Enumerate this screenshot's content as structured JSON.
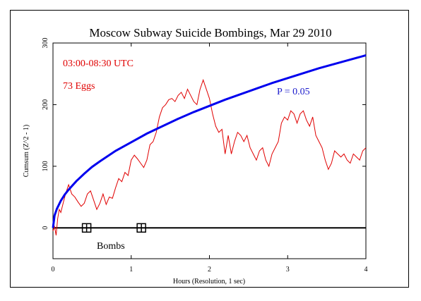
{
  "chart_data": {
    "type": "line",
    "title": "Moscow Subway Suicide Bombings, Mar 29 2010",
    "xlabel": "Hours (Resolution, 1 sec)",
    "ylabel": "Cumsum (Z^2 - 1)",
    "xlim": [
      0,
      4
    ],
    "ylim": [
      -50,
      300
    ],
    "x_ticks": [
      0,
      1,
      2,
      3,
      4
    ],
    "y_ticks": [
      0,
      100,
      200,
      300
    ],
    "grid": false,
    "series": [
      {
        "name": "",
        "color": "#e00000",
        "x": [
          0,
          0.02,
          0.04,
          0.06,
          0.08,
          0.1,
          0.13,
          0.16,
          0.2,
          0.24,
          0.28,
          0.32,
          0.36,
          0.4,
          0.44,
          0.48,
          0.52,
          0.56,
          0.6,
          0.64,
          0.68,
          0.72,
          0.76,
          0.8,
          0.84,
          0.88,
          0.92,
          0.96,
          1.0,
          1.04,
          1.08,
          1.12,
          1.16,
          1.2,
          1.24,
          1.28,
          1.32,
          1.36,
          1.4,
          1.44,
          1.48,
          1.52,
          1.56,
          1.6,
          1.64,
          1.68,
          1.72,
          1.76,
          1.8,
          1.84,
          1.88,
          1.92,
          1.96,
          2.0,
          2.04,
          2.08,
          2.12,
          2.16,
          2.2,
          2.24,
          2.28,
          2.32,
          2.36,
          2.4,
          2.44,
          2.48,
          2.52,
          2.56,
          2.6,
          2.64,
          2.68,
          2.72,
          2.76,
          2.8,
          2.84,
          2.88,
          2.92,
          2.96,
          3.0,
          3.04,
          3.08,
          3.12,
          3.16,
          3.2,
          3.24,
          3.28,
          3.32,
          3.36,
          3.4,
          3.44,
          3.48,
          3.52,
          3.56,
          3.6,
          3.64,
          3.68,
          3.72,
          3.76,
          3.8,
          3.84,
          3.88,
          3.92,
          3.96,
          4.0
        ],
        "y": [
          -5,
          2,
          -12,
          15,
          30,
          25,
          40,
          55,
          70,
          55,
          50,
          42,
          35,
          40,
          55,
          60,
          45,
          30,
          40,
          55,
          38,
          50,
          48,
          65,
          80,
          75,
          90,
          85,
          110,
          118,
          112,
          105,
          98,
          110,
          135,
          140,
          155,
          180,
          195,
          200,
          208,
          210,
          205,
          215,
          220,
          210,
          225,
          215,
          205,
          200,
          225,
          240,
          225,
          210,
          185,
          165,
          155,
          160,
          120,
          150,
          120,
          140,
          155,
          150,
          140,
          150,
          130,
          120,
          110,
          125,
          130,
          110,
          100,
          120,
          130,
          140,
          170,
          180,
          175,
          190,
          185,
          170,
          185,
          190,
          175,
          165,
          180,
          150,
          140,
          130,
          110,
          95,
          105,
          125,
          120,
          115,
          120,
          110,
          105,
          120,
          115,
          110,
          125,
          130
        ]
      },
      {
        "name": "",
        "color": "#0000ee",
        "x": [
          0,
          0.02,
          0.05,
          0.1,
          0.15,
          0.2,
          0.3,
          0.4,
          0.5,
          0.6,
          0.8,
          1.0,
          1.2,
          1.4,
          1.6,
          1.8,
          2.0,
          2.2,
          2.4,
          2.6,
          2.8,
          3.0,
          3.2,
          3.4,
          3.6,
          3.8,
          4.0
        ],
        "y": [
          0,
          20,
          31,
          44,
          54,
          62,
          76,
          88,
          99,
          108,
          125,
          139,
          153,
          165,
          177,
          188,
          198,
          208,
          217,
          226,
          235,
          243,
          251,
          259,
          266,
          273,
          280
        ]
      }
    ],
    "markers": [
      {
        "x": 0.43,
        "y": 0,
        "label": ""
      },
      {
        "x": 1.13,
        "y": 0,
        "label": ""
      }
    ],
    "annotations": {
      "time_range": "03:00-08:30 UTC",
      "eggs": "73 Eggs",
      "p_value": "P = 0.05",
      "bombs": "Bombs"
    }
  }
}
